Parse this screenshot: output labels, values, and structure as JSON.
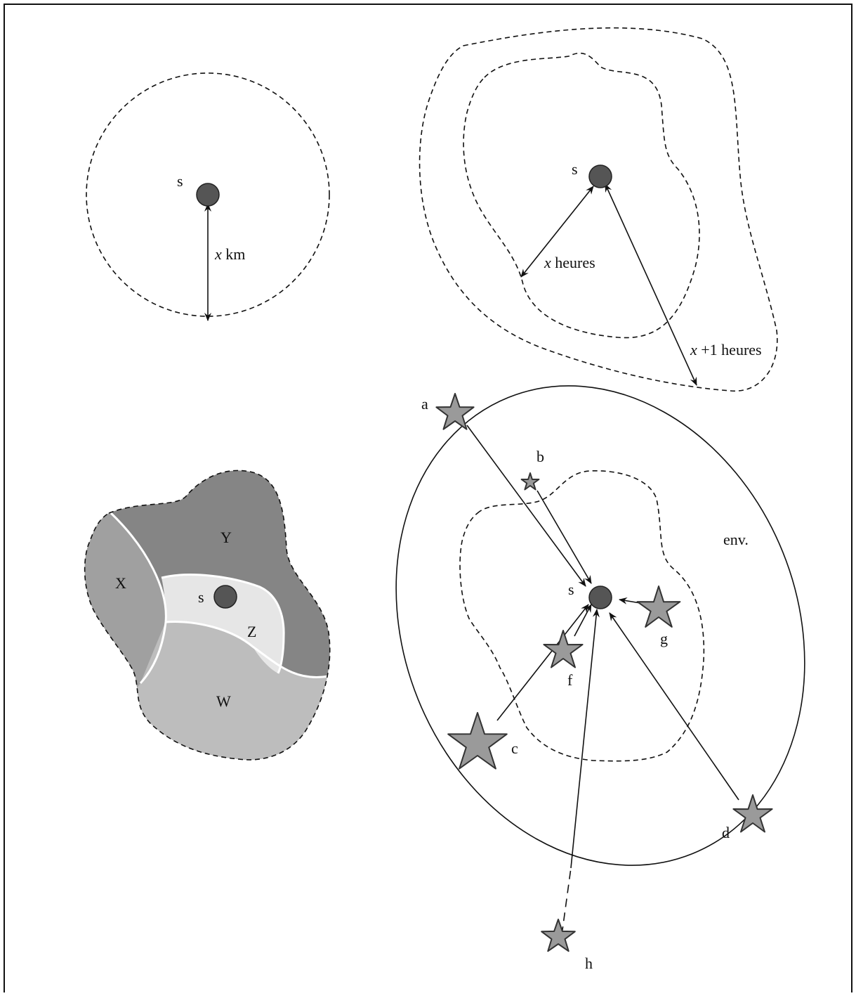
{
  "panel_a": {
    "site_label": "s",
    "distance_var": "x",
    "distance_unit": "km"
  },
  "panel_b": {
    "site_label": "s",
    "inner_var": "x",
    "inner_unit": "heures",
    "outer_var": "x",
    "outer_unit": "+1 heures"
  },
  "panel_c": {
    "site_label": "s",
    "regions": [
      {
        "id": "X",
        "label": "X"
      },
      {
        "id": "Y",
        "label": "Y"
      },
      {
        "id": "Z",
        "label": "Z"
      },
      {
        "id": "W",
        "label": "W"
      }
    ]
  },
  "panel_d": {
    "site_label": "s",
    "envelope_label": "env.",
    "stars": [
      {
        "id": "a",
        "label": "a"
      },
      {
        "id": "b",
        "label": "b"
      },
      {
        "id": "c",
        "label": "c"
      },
      {
        "id": "d",
        "label": "d"
      },
      {
        "id": "f",
        "label": "f"
      },
      {
        "id": "g",
        "label": "g"
      },
      {
        "id": "h",
        "label": "h"
      }
    ]
  },
  "colors": {
    "site_fill": "#555555",
    "star_fill": "#9a9a9a",
    "region_X": "#a0a0a0",
    "region_Y": "#858585",
    "region_Z": "#e6e6e6",
    "region_W": "#bdbdbd"
  }
}
